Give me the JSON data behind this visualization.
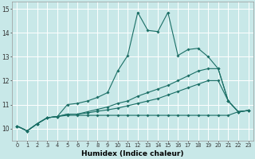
{
  "xlabel": "Humidex (Indice chaleur)",
  "bg_color": "#c8e8e8",
  "grid_color": "#ffffff",
  "line_color": "#1a6e65",
  "xlim": [
    -0.5,
    23.5
  ],
  "ylim": [
    9.5,
    15.3
  ],
  "xticks": [
    0,
    1,
    2,
    3,
    4,
    5,
    6,
    7,
    8,
    9,
    10,
    11,
    12,
    13,
    14,
    15,
    16,
    17,
    18,
    19,
    20,
    21,
    22,
    23
  ],
  "yticks": [
    10,
    11,
    12,
    13,
    14,
    15
  ],
  "x": [
    0,
    1,
    2,
    3,
    4,
    5,
    6,
    7,
    8,
    9,
    10,
    11,
    12,
    13,
    14,
    15,
    16,
    17,
    18,
    19,
    20,
    21,
    22,
    23
  ],
  "line1": [
    10.1,
    9.9,
    10.2,
    10.45,
    10.5,
    11.0,
    11.05,
    11.15,
    11.3,
    11.5,
    12.4,
    13.05,
    14.85,
    14.1,
    14.05,
    14.85,
    13.05,
    13.3,
    13.35,
    13.0,
    12.5,
    11.15,
    10.7,
    10.75
  ],
  "line2": [
    10.1,
    9.9,
    10.2,
    10.45,
    10.5,
    10.6,
    10.6,
    10.7,
    10.8,
    10.9,
    11.05,
    11.15,
    11.35,
    11.5,
    11.65,
    11.8,
    12.0,
    12.2,
    12.4,
    12.5,
    12.5,
    11.15,
    10.7,
    10.75
  ],
  "line3": [
    10.1,
    9.9,
    10.2,
    10.45,
    10.5,
    10.6,
    10.6,
    10.65,
    10.72,
    10.78,
    10.85,
    10.95,
    11.05,
    11.15,
    11.25,
    11.4,
    11.55,
    11.7,
    11.85,
    12.0,
    12.0,
    11.15,
    10.7,
    10.75
  ],
  "line4": [
    10.1,
    9.9,
    10.2,
    10.45,
    10.5,
    10.55,
    10.55,
    10.55,
    10.55,
    10.55,
    10.55,
    10.55,
    10.55,
    10.55,
    10.55,
    10.55,
    10.55,
    10.55,
    10.55,
    10.55,
    10.55,
    10.55,
    10.7,
    10.75
  ]
}
